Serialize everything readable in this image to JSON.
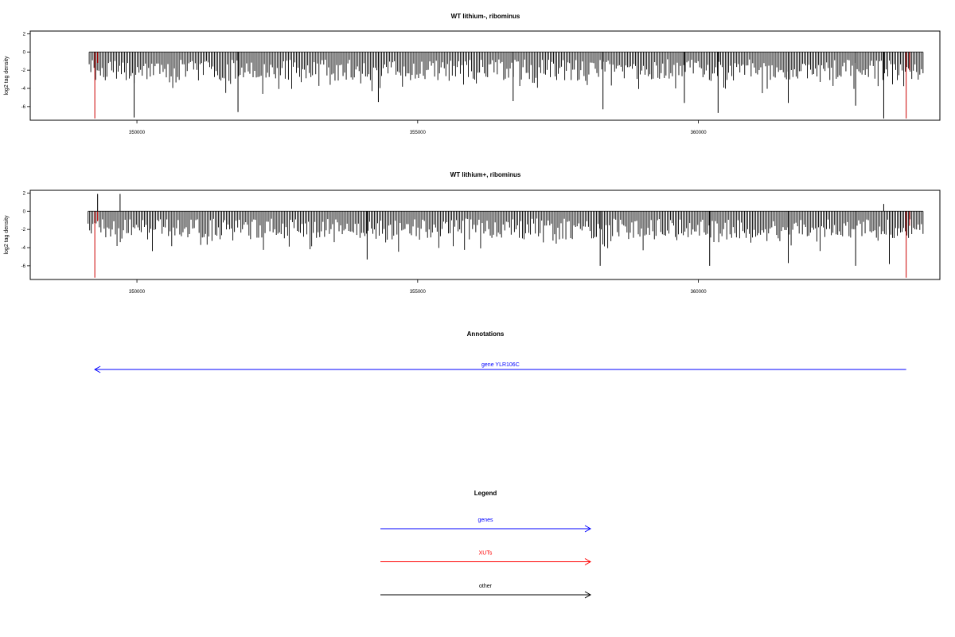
{
  "chart_data": [
    {
      "type": "bar",
      "title": "WT lithium-, ribominus",
      "ylabel": "log2 tag density",
      "xlabel": "",
      "xlim": [
        348100,
        364300
      ],
      "ylim": [
        -7.5,
        2.3
      ],
      "xticks": [
        350000,
        355000,
        360000
      ],
      "xtick_labels": [
        "350000",
        "355000",
        "360000"
      ],
      "yticks": [
        2,
        0,
        -2,
        -4,
        -6
      ],
      "ytick_labels": [
        "2",
        "0",
        "-2",
        "-4",
        "-6"
      ],
      "grid": false,
      "signal": {
        "x_start": 349150,
        "x_end": 364000,
        "bin_count": 520,
        "seed": 7,
        "color": "#000000",
        "spikes": [
          {
            "x": 349950,
            "y": -7.2
          },
          {
            "x": 351800,
            "y": -6.6
          },
          {
            "x": 354300,
            "y": -5.5
          },
          {
            "x": 356700,
            "y": -5.4
          },
          {
            "x": 358300,
            "y": -6.3
          },
          {
            "x": 359750,
            "y": -5.6
          },
          {
            "x": 360350,
            "y": -6.7
          },
          {
            "x": 361600,
            "y": -5.6
          },
          {
            "x": 362800,
            "y": -5.9
          },
          {
            "x": 363300,
            "y": -7.3
          }
        ]
      },
      "highlights": [
        {
          "x": 349250,
          "y": -7.3,
          "color": "#cc0000"
        },
        {
          "x": 349300,
          "y": -1.2,
          "color": "#cc0000"
        },
        {
          "x": 363700,
          "y": -7.3,
          "color": "#cc0000"
        },
        {
          "x": 363760,
          "y": -2.0,
          "color": "#cc0000"
        }
      ]
    },
    {
      "type": "bar",
      "title": "WT lithium+, ribominus",
      "ylabel": "log2 tag density",
      "xlabel": "",
      "xlim": [
        348100,
        364300
      ],
      "ylim": [
        -7.5,
        2.3
      ],
      "xticks": [
        350000,
        355000,
        360000
      ],
      "xtick_labels": [
        "350000",
        "355000",
        "360000"
      ],
      "yticks": [
        2,
        0,
        -2,
        -4,
        -6
      ],
      "ytick_labels": [
        "2",
        "0",
        "-2",
        "-4",
        "-6"
      ],
      "grid": false,
      "signal": {
        "x_start": 349130,
        "x_end": 364000,
        "bin_count": 520,
        "seed": 23,
        "color": "#000000",
        "spikes": [
          {
            "x": 349300,
            "y": 1.9
          },
          {
            "x": 349700,
            "y": 1.9
          },
          {
            "x": 363300,
            "y": 0.8
          },
          {
            "x": 354100,
            "y": -5.3
          },
          {
            "x": 358250,
            "y": -6.0
          },
          {
            "x": 360200,
            "y": -6.0
          },
          {
            "x": 361600,
            "y": -5.7
          },
          {
            "x": 362800,
            "y": -6.0
          },
          {
            "x": 363400,
            "y": -5.8
          }
        ]
      },
      "highlights": [
        {
          "x": 349250,
          "y": -7.3,
          "color": "#cc0000"
        },
        {
          "x": 349300,
          "y": -1.1,
          "color": "#cc0000"
        },
        {
          "x": 363700,
          "y": -7.3,
          "color": "#cc0000"
        },
        {
          "x": 363760,
          "y": -1.6,
          "color": "#cc0000"
        }
      ]
    },
    {
      "type": "annotation_track",
      "title": "Annotations",
      "features": [
        {
          "label": "gene YLR106C",
          "start": 363700,
          "end": 349250,
          "strand": "-",
          "color": "#0000ff"
        }
      ]
    },
    {
      "type": "legend",
      "title": "Legend",
      "entries": [
        {
          "label": "genes",
          "color": "#0000ff"
        },
        {
          "label": "XUTs",
          "color": "#ff0000"
        },
        {
          "label": "other",
          "color": "#000000"
        }
      ]
    }
  ]
}
